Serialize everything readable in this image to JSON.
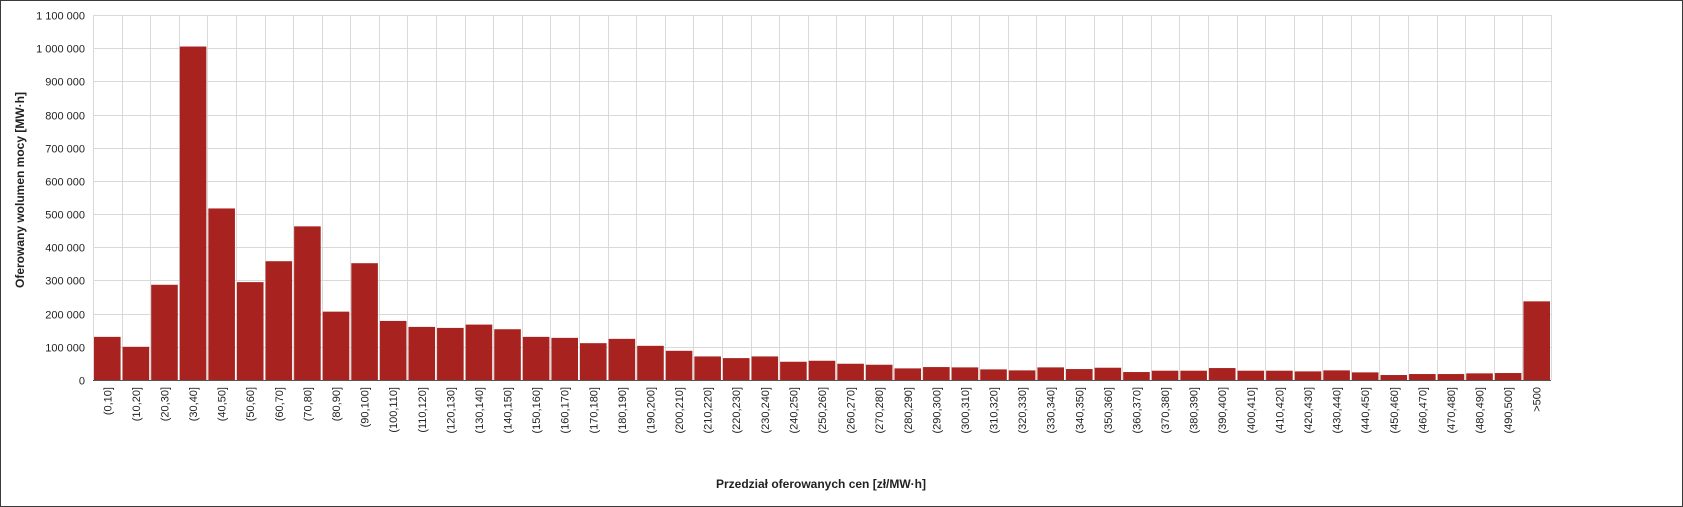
{
  "chart_data": {
    "type": "bar",
    "title": "",
    "xlabel": "Przedział oferowanych cen [zł/MW·h]",
    "ylabel": "Oferowany wolumen mocy [MW·h]",
    "ylim": [
      0,
      1100000
    ],
    "yticks": [
      0,
      100000,
      200000,
      300000,
      400000,
      500000,
      600000,
      700000,
      800000,
      900000,
      1000000,
      1100000
    ],
    "ytick_labels": [
      "0",
      "100 000",
      "200 000",
      "300 000",
      "400 000",
      "500 000",
      "600 000",
      "700 000",
      "800 000",
      "900 000",
      "1 000 000",
      "1 100 000"
    ],
    "grid": true,
    "bar_color": "#a8231f",
    "categories": [
      "(0,10]",
      "(10,20]",
      "(20,30]",
      "(30,40]",
      "(40,50]",
      "(50,60]",
      "(60,70]",
      "(70,80]",
      "(80,90]",
      "(90,100]",
      "(100,110]",
      "(110,120]",
      "(120,130]",
      "(130,140]",
      "(140,150]",
      "(150,160]",
      "(160,170]",
      "(170,180]",
      "(180,190]",
      "(190,200]",
      "(200,210]",
      "(210,220]",
      "(220,230]",
      "(230,240]",
      "(240,250]",
      "(250,260]",
      "(260,270]",
      "(270,280]",
      "(280,290]",
      "(290,300]",
      "(300,310]",
      "(310,320]",
      "(320,330]",
      "(330,340]",
      "(340,350]",
      "(350,360]",
      "(360,370]",
      "(370,380]",
      "(380,390]",
      "(390,400]",
      "(400,410]",
      "(410,420]",
      "(420,430]",
      "(430,440]",
      "(440,450]",
      "(450,460]",
      "(460,470]",
      "(470,480]",
      "(480,490]",
      "(490,500]",
      ">500"
    ],
    "values": [
      130000,
      100000,
      287000,
      1005000,
      517000,
      295000,
      358000,
      463000,
      206000,
      352000,
      178000,
      160000,
      157000,
      167000,
      153000,
      130000,
      127000,
      111000,
      124000,
      103000,
      88000,
      71000,
      66000,
      71000,
      55000,
      58000,
      49000,
      46000,
      35000,
      39000,
      38000,
      32000,
      29000,
      38000,
      33000,
      37000,
      24000,
      28000,
      28000,
      36000,
      28000,
      28000,
      26000,
      29000,
      23000,
      15000,
      18000,
      18000,
      20000,
      21000,
      237000
    ]
  }
}
